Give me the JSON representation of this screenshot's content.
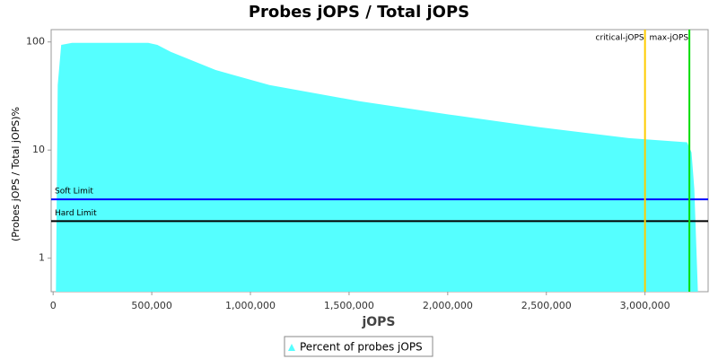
{
  "chart_data": {
    "type": "area",
    "title": "Probes jOPS / Total jOPS",
    "xlabel": "jOPS",
    "ylabel": "(Probes jOPS / Total jOPS)%",
    "log_y": true,
    "grid": false,
    "xlim": [
      -10000,
      3320000
    ],
    "xticks": [
      0,
      {
        "value": 500000,
        "label": "500,000"
      },
      {
        "value": 1000000,
        "label": "1,000,000"
      },
      {
        "value": 1500000,
        "label": "1,500,000"
      },
      {
        "value": 2000000,
        "label": "2,000,000"
      },
      {
        "value": 2500000,
        "label": "2,500,000"
      },
      {
        "value": 3000000,
        "label": "3,000,000"
      }
    ],
    "ylim": [
      0.49,
      130
    ],
    "yticks": [
      1,
      10,
      100
    ],
    "series": [
      {
        "name": "Percent of probes jOPS",
        "color": "#55ffff",
        "x": [
          14000,
          23000,
          41000,
          96000,
          482000,
          528000,
          596000,
          824000,
          1097000,
          1552000,
          2007000,
          2462000,
          2918000,
          3213000,
          3236000,
          3250000,
          3268000
        ],
        "values": [
          0.49,
          40,
          94,
          98,
          98,
          94,
          81,
          55,
          40,
          28.3,
          21.3,
          16.3,
          12.9,
          11.8,
          9.5,
          4.4,
          0.49
        ]
      }
    ],
    "hlines": [
      {
        "label": "Soft Limit",
        "value": 3.5,
        "color": "#0000ff"
      },
      {
        "label": "Hard Limit",
        "value": 2.2,
        "color": "#000000"
      }
    ],
    "vlines": [
      {
        "label": "critical-jOPS",
        "value": 3000000,
        "color": "#ffcc00"
      },
      {
        "label": "max-jOPS",
        "value": 3225000,
        "color": "#00dd00"
      }
    ],
    "legend_position": "bottom"
  }
}
